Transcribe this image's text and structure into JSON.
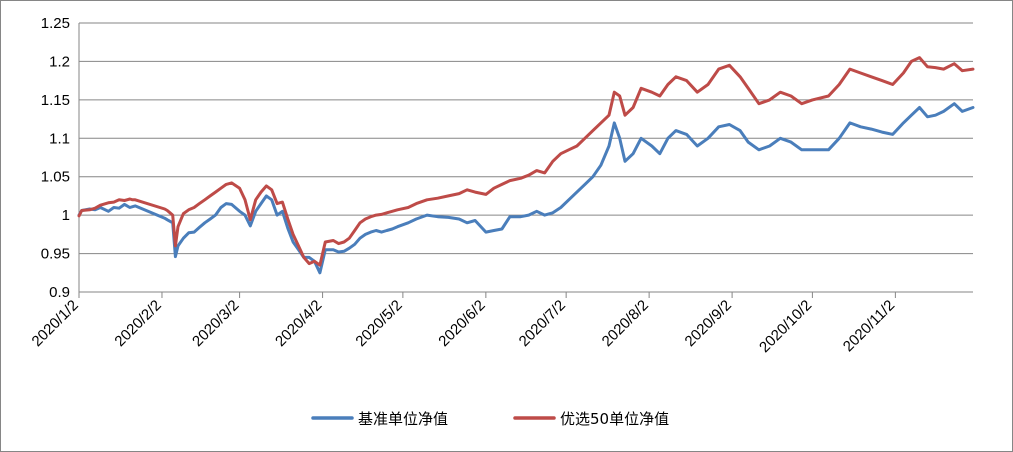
{
  "chart_data": {
    "type": "line",
    "title": "",
    "xlabel": "",
    "ylabel": "",
    "ylim": [
      0.9,
      1.25
    ],
    "y_ticks": [
      "0.9",
      "0.95",
      "1",
      "1.05",
      "1.1",
      "1.15",
      "1.2",
      "1.25"
    ],
    "x_ticks": [
      "2020/1/2",
      "2020/2/2",
      "2020/3/2",
      "2020/4/2",
      "2020/5/2",
      "2020/6/2",
      "2020/7/2",
      "2020/8/2",
      "2020/9/2",
      "2020/10/2",
      "2020/11/2"
    ],
    "x_range": [
      "2020-01-02",
      "2020-12-01"
    ],
    "grid": "horizontal",
    "legend_position": "bottom",
    "series": [
      {
        "name": "基准单位净值",
        "color": "#4a7ebb",
        "points": [
          [
            "2020-01-02",
            1.0
          ],
          [
            "2020-01-03",
            1.006
          ],
          [
            "2020-01-06",
            1.008
          ],
          [
            "2020-01-08",
            1.007
          ],
          [
            "2020-01-10",
            1.01
          ],
          [
            "2020-01-13",
            1.005
          ],
          [
            "2020-01-15",
            1.01
          ],
          [
            "2020-01-17",
            1.009
          ],
          [
            "2020-01-19",
            1.014
          ],
          [
            "2020-01-21",
            1.01
          ],
          [
            "2020-01-22",
            1.011
          ],
          [
            "2020-01-23",
            1.012
          ],
          [
            "2020-02-03",
            0.996
          ],
          [
            "2020-02-04",
            0.994
          ],
          [
            "2020-02-05",
            0.992
          ],
          [
            "2020-02-06",
            0.99
          ],
          [
            "2020-02-07",
            0.946
          ],
          [
            "2020-02-08",
            0.96
          ],
          [
            "2020-02-10",
            0.97
          ],
          [
            "2020-02-12",
            0.977
          ],
          [
            "2020-02-14",
            0.978
          ],
          [
            "2020-02-16",
            0.984
          ],
          [
            "2020-02-18",
            0.99
          ],
          [
            "2020-02-20",
            0.995
          ],
          [
            "2020-02-22",
            1.0
          ],
          [
            "2020-02-24",
            1.01
          ],
          [
            "2020-02-26",
            1.015
          ],
          [
            "2020-02-28",
            1.014
          ],
          [
            "2020-03-02",
            1.005
          ],
          [
            "2020-03-04",
            1.0
          ],
          [
            "2020-03-06",
            0.986
          ],
          [
            "2020-03-08",
            1.005
          ],
          [
            "2020-03-10",
            1.015
          ],
          [
            "2020-03-12",
            1.025
          ],
          [
            "2020-03-14",
            1.02
          ],
          [
            "2020-03-16",
            1.0
          ],
          [
            "2020-03-18",
            1.005
          ],
          [
            "2020-03-20",
            0.983
          ],
          [
            "2020-03-22",
            0.965
          ],
          [
            "2020-03-24",
            0.955
          ],
          [
            "2020-03-26",
            0.945
          ],
          [
            "2020-03-28",
            0.945
          ],
          [
            "2020-03-30",
            0.94
          ],
          [
            "2020-04-01",
            0.925
          ],
          [
            "2020-04-03",
            0.955
          ],
          [
            "2020-04-06",
            0.955
          ],
          [
            "2020-04-08",
            0.952
          ],
          [
            "2020-04-10",
            0.953
          ],
          [
            "2020-04-12",
            0.957
          ],
          [
            "2020-04-14",
            0.962
          ],
          [
            "2020-04-16",
            0.97
          ],
          [
            "2020-04-18",
            0.975
          ],
          [
            "2020-04-20",
            0.978
          ],
          [
            "2020-04-22",
            0.98
          ],
          [
            "2020-04-24",
            0.978
          ],
          [
            "2020-04-26",
            0.98
          ],
          [
            "2020-04-28",
            0.982
          ],
          [
            "2020-04-30",
            0.985
          ],
          [
            "2020-05-04",
            0.99
          ],
          [
            "2020-05-07",
            0.995
          ],
          [
            "2020-05-11",
            1.0
          ],
          [
            "2020-05-15",
            0.998
          ],
          [
            "2020-05-19",
            0.997
          ],
          [
            "2020-05-23",
            0.995
          ],
          [
            "2020-05-26",
            0.99
          ],
          [
            "2020-05-29",
            0.993
          ],
          [
            "2020-06-02",
            0.978
          ],
          [
            "2020-06-05",
            0.98
          ],
          [
            "2020-06-08",
            0.982
          ],
          [
            "2020-06-11",
            0.998
          ],
          [
            "2020-06-15",
            0.998
          ],
          [
            "2020-06-18",
            1.0
          ],
          [
            "2020-06-21",
            1.005
          ],
          [
            "2020-06-24",
            1.0
          ],
          [
            "2020-06-27",
            1.003
          ],
          [
            "2020-06-30",
            1.01
          ],
          [
            "2020-07-03",
            1.02
          ],
          [
            "2020-07-06",
            1.03
          ],
          [
            "2020-07-09",
            1.04
          ],
          [
            "2020-07-12",
            1.05
          ],
          [
            "2020-07-15",
            1.065
          ],
          [
            "2020-07-18",
            1.09
          ],
          [
            "2020-07-20",
            1.12
          ],
          [
            "2020-07-22",
            1.1
          ],
          [
            "2020-07-24",
            1.07
          ],
          [
            "2020-07-27",
            1.08
          ],
          [
            "2020-07-30",
            1.1
          ],
          [
            "2020-08-03",
            1.09
          ],
          [
            "2020-08-06",
            1.08
          ],
          [
            "2020-08-09",
            1.1
          ],
          [
            "2020-08-12",
            1.11
          ],
          [
            "2020-08-16",
            1.105
          ],
          [
            "2020-08-20",
            1.09
          ],
          [
            "2020-08-24",
            1.1
          ],
          [
            "2020-08-28",
            1.115
          ],
          [
            "2020-09-01",
            1.118
          ],
          [
            "2020-09-05",
            1.11
          ],
          [
            "2020-09-08",
            1.095
          ],
          [
            "2020-09-12",
            1.085
          ],
          [
            "2020-09-16",
            1.09
          ],
          [
            "2020-09-20",
            1.1
          ],
          [
            "2020-09-24",
            1.095
          ],
          [
            "2020-09-28",
            1.085
          ],
          [
            "2020-10-02",
            1.085
          ],
          [
            "2020-10-08",
            1.085
          ],
          [
            "2020-10-12",
            1.1
          ],
          [
            "2020-10-16",
            1.12
          ],
          [
            "2020-10-20",
            1.115
          ],
          [
            "2020-10-24",
            1.112
          ],
          [
            "2020-10-28",
            1.108
          ],
          [
            "2020-11-01",
            1.105
          ],
          [
            "2020-11-05",
            1.12
          ],
          [
            "2020-11-08",
            1.13
          ],
          [
            "2020-11-11",
            1.14
          ],
          [
            "2020-11-14",
            1.128
          ],
          [
            "2020-11-17",
            1.13
          ],
          [
            "2020-11-20",
            1.135
          ],
          [
            "2020-11-24",
            1.145
          ],
          [
            "2020-11-27",
            1.135
          ],
          [
            "2020-12-01",
            1.14
          ]
        ]
      },
      {
        "name": "优选50单位净值",
        "color": "#be4b48",
        "points": [
          [
            "2020-01-02",
            0.999
          ],
          [
            "2020-01-03",
            1.006
          ],
          [
            "2020-01-06",
            1.007
          ],
          [
            "2020-01-08",
            1.009
          ],
          [
            "2020-01-10",
            1.013
          ],
          [
            "2020-01-13",
            1.016
          ],
          [
            "2020-01-15",
            1.017
          ],
          [
            "2020-01-17",
            1.02
          ],
          [
            "2020-01-19",
            1.019
          ],
          [
            "2020-01-21",
            1.021
          ],
          [
            "2020-01-22",
            1.02
          ],
          [
            "2020-01-23",
            1.02
          ],
          [
            "2020-02-03",
            1.008
          ],
          [
            "2020-02-04",
            1.006
          ],
          [
            "2020-02-05",
            1.003
          ],
          [
            "2020-02-06",
            1.0
          ],
          [
            "2020-02-07",
            0.96
          ],
          [
            "2020-02-08",
            0.985
          ],
          [
            "2020-02-10",
            1.002
          ],
          [
            "2020-02-12",
            1.007
          ],
          [
            "2020-02-14",
            1.01
          ],
          [
            "2020-02-16",
            1.015
          ],
          [
            "2020-02-18",
            1.02
          ],
          [
            "2020-02-20",
            1.025
          ],
          [
            "2020-02-22",
            1.03
          ],
          [
            "2020-02-24",
            1.035
          ],
          [
            "2020-02-26",
            1.04
          ],
          [
            "2020-02-28",
            1.042
          ],
          [
            "2020-03-02",
            1.035
          ],
          [
            "2020-03-04",
            1.02
          ],
          [
            "2020-03-06",
            0.994
          ],
          [
            "2020-03-08",
            1.02
          ],
          [
            "2020-03-10",
            1.03
          ],
          [
            "2020-03-12",
            1.038
          ],
          [
            "2020-03-14",
            1.033
          ],
          [
            "2020-03-16",
            1.015
          ],
          [
            "2020-03-18",
            1.017
          ],
          [
            "2020-03-20",
            0.995
          ],
          [
            "2020-03-22",
            0.975
          ],
          [
            "2020-03-24",
            0.96
          ],
          [
            "2020-03-26",
            0.945
          ],
          [
            "2020-03-28",
            0.937
          ],
          [
            "2020-03-30",
            0.94
          ],
          [
            "2020-04-01",
            0.935
          ],
          [
            "2020-04-03",
            0.965
          ],
          [
            "2020-04-06",
            0.967
          ],
          [
            "2020-04-08",
            0.963
          ],
          [
            "2020-04-10",
            0.965
          ],
          [
            "2020-04-12",
            0.97
          ],
          [
            "2020-04-14",
            0.98
          ],
          [
            "2020-04-16",
            0.99
          ],
          [
            "2020-04-18",
            0.995
          ],
          [
            "2020-04-20",
            0.998
          ],
          [
            "2020-04-22",
            1.0
          ],
          [
            "2020-04-24",
            1.001
          ],
          [
            "2020-04-26",
            1.003
          ],
          [
            "2020-04-28",
            1.005
          ],
          [
            "2020-04-30",
            1.007
          ],
          [
            "2020-05-04",
            1.01
          ],
          [
            "2020-05-07",
            1.015
          ],
          [
            "2020-05-11",
            1.02
          ],
          [
            "2020-05-15",
            1.022
          ],
          [
            "2020-05-19",
            1.025
          ],
          [
            "2020-05-23",
            1.028
          ],
          [
            "2020-05-26",
            1.033
          ],
          [
            "2020-05-29",
            1.03
          ],
          [
            "2020-06-02",
            1.027
          ],
          [
            "2020-06-05",
            1.035
          ],
          [
            "2020-06-08",
            1.04
          ],
          [
            "2020-06-11",
            1.045
          ],
          [
            "2020-06-15",
            1.048
          ],
          [
            "2020-06-18",
            1.052
          ],
          [
            "2020-06-21",
            1.058
          ],
          [
            "2020-06-24",
            1.055
          ],
          [
            "2020-06-27",
            1.07
          ],
          [
            "2020-06-30",
            1.08
          ],
          [
            "2020-07-03",
            1.085
          ],
          [
            "2020-07-06",
            1.09
          ],
          [
            "2020-07-09",
            1.1
          ],
          [
            "2020-07-12",
            1.11
          ],
          [
            "2020-07-15",
            1.12
          ],
          [
            "2020-07-18",
            1.13
          ],
          [
            "2020-07-20",
            1.16
          ],
          [
            "2020-07-22",
            1.155
          ],
          [
            "2020-07-24",
            1.13
          ],
          [
            "2020-07-27",
            1.14
          ],
          [
            "2020-07-30",
            1.165
          ],
          [
            "2020-08-03",
            1.16
          ],
          [
            "2020-08-06",
            1.155
          ],
          [
            "2020-08-09",
            1.17
          ],
          [
            "2020-08-12",
            1.18
          ],
          [
            "2020-08-16",
            1.175
          ],
          [
            "2020-08-20",
            1.16
          ],
          [
            "2020-08-24",
            1.17
          ],
          [
            "2020-08-28",
            1.19
          ],
          [
            "2020-09-01",
            1.195
          ],
          [
            "2020-09-05",
            1.18
          ],
          [
            "2020-09-08",
            1.165
          ],
          [
            "2020-09-12",
            1.145
          ],
          [
            "2020-09-16",
            1.15
          ],
          [
            "2020-09-20",
            1.16
          ],
          [
            "2020-09-24",
            1.155
          ],
          [
            "2020-09-28",
            1.145
          ],
          [
            "2020-10-02",
            1.15
          ],
          [
            "2020-10-08",
            1.155
          ],
          [
            "2020-10-12",
            1.17
          ],
          [
            "2020-10-16",
            1.19
          ],
          [
            "2020-10-20",
            1.185
          ],
          [
            "2020-10-24",
            1.18
          ],
          [
            "2020-10-28",
            1.175
          ],
          [
            "2020-11-01",
            1.17
          ],
          [
            "2020-11-05",
            1.185
          ],
          [
            "2020-11-08",
            1.2
          ],
          [
            "2020-11-11",
            1.205
          ],
          [
            "2020-11-14",
            1.193
          ],
          [
            "2020-11-17",
            1.192
          ],
          [
            "2020-11-20",
            1.19
          ],
          [
            "2020-11-24",
            1.197
          ],
          [
            "2020-11-27",
            1.188
          ],
          [
            "2020-12-01",
            1.19
          ]
        ]
      }
    ]
  }
}
